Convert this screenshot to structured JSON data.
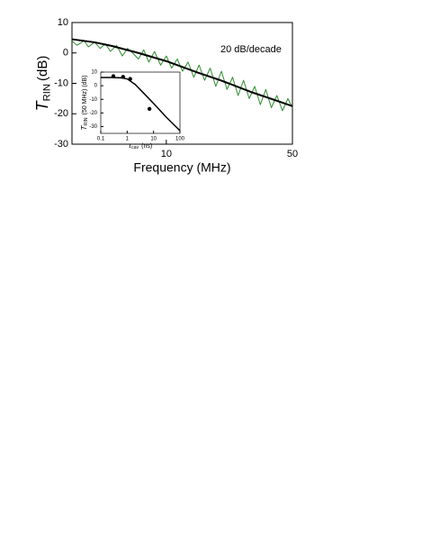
{
  "chart_data": [
    {
      "type": "line",
      "xlabel": "Frequency (MHz)",
      "ylabel": {
        "symbol": "T",
        "subscript": "RIN",
        "unit": "(dB)"
      },
      "xscale": "log",
      "xlim": [
        3,
        50
      ],
      "xticks": [
        10,
        50
      ],
      "ylim": [
        -30,
        10
      ],
      "yticks": [
        10,
        0,
        -10,
        -20,
        -30
      ],
      "annotation": "20 dB/decade",
      "series": [
        {
          "style": "line",
          "color": "#2e8b2e",
          "x": [
            3,
            3.2,
            3.5,
            3.7,
            4,
            4.3,
            4.6,
            4.9,
            5.3,
            5.7,
            6.1,
            6.5,
            7,
            7.5,
            8,
            8.6,
            9.3,
            10,
            10.7,
            11.5,
            12.3,
            13.2,
            14.2,
            15.2,
            16.3,
            17.5,
            18.8,
            20.2,
            21.7,
            23.3,
            25,
            26.8,
            28.8,
            30.9,
            33.2,
            35.6,
            38.2,
            41,
            44,
            47.2,
            50
          ],
          "values": [
            4,
            2.5,
            4,
            2,
            3.5,
            1.5,
            3,
            0.5,
            2.5,
            -1,
            1.5,
            0,
            -2,
            1,
            -3,
            0.5,
            -4,
            -1,
            -5,
            -2,
            -6,
            -3,
            -8,
            -4,
            -9,
            -5,
            -11,
            -6,
            -12,
            -8,
            -14,
            -9,
            -15,
            -11,
            -17,
            -12,
            -18,
            -14,
            -19,
            -15,
            -18
          ]
        },
        {
          "style": "fit",
          "color": "#000000",
          "x": [
            3,
            4,
            5,
            7,
            10,
            15,
            20,
            30,
            40,
            50
          ],
          "values": [
            4.5,
            3.5,
            2.3,
            0,
            -2.7,
            -6.5,
            -9,
            -13,
            -15.5,
            -17.5
          ]
        }
      ]
    },
    {
      "type": "line",
      "xlabel": {
        "symbol": "τ",
        "subscript": "cav",
        "unit": "(ns)"
      },
      "ylabel": {
        "symbol": "T",
        "subscript": "RIN",
        "unit": "(50 MHz) (dB)"
      },
      "xscale": "log",
      "xlim": [
        0.1,
        100
      ],
      "xticks": [
        0.1,
        1,
        10,
        100
      ],
      "ylim": [
        -35,
        10
      ],
      "yticks": [
        10,
        0,
        -10,
        -20,
        -30
      ],
      "series": [
        {
          "style": "fit",
          "color": "#000000",
          "x": [
            0.1,
            0.3,
            0.6,
            1,
            2,
            4,
            10,
            30,
            100
          ],
          "values": [
            6,
            6,
            5.8,
            5,
            1,
            -5,
            -13,
            -23,
            -33
          ]
        },
        {
          "style": "markers",
          "color": "#000000",
          "x": [
            0.3,
            0.7,
            1.3,
            7
          ],
          "values": [
            7,
            6.5,
            5,
            -17
          ]
        }
      ]
    }
  ]
}
